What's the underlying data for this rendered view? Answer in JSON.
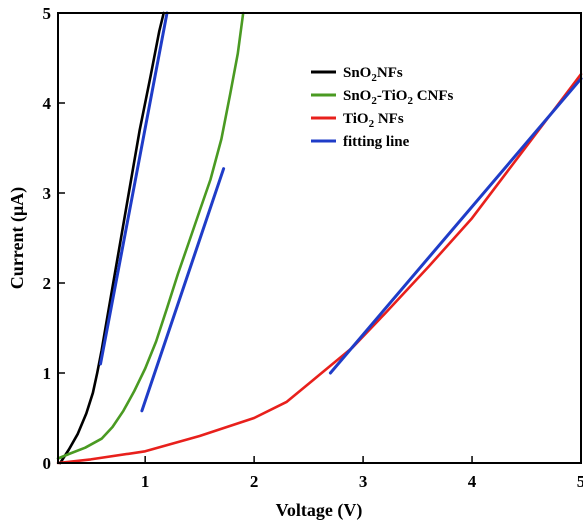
{
  "chart_data": {
    "type": "line",
    "xlabel": "Voltage (V)",
    "ylabel_parts": [
      "Current (",
      "μ",
      "A)"
    ],
    "xlim": [
      0.2,
      5.0
    ],
    "ylim": [
      0,
      5
    ],
    "x_ticks": [
      1,
      2,
      3,
      4,
      5
    ],
    "y_ticks": [
      0,
      1,
      2,
      3,
      4,
      5
    ],
    "legend_position": "top-right",
    "legend": [
      {
        "series": "sno2",
        "parts": [
          {
            "t": "SnO"
          },
          {
            "t": "2",
            "sub": true
          },
          {
            "t": "NFs"
          }
        ]
      },
      {
        "series": "composite",
        "parts": [
          {
            "t": "SnO"
          },
          {
            "t": "2",
            "sub": true
          },
          {
            "t": "-TiO"
          },
          {
            "t": "2",
            "sub": true
          },
          {
            "t": " CNFs"
          }
        ]
      },
      {
        "series": "tio2",
        "parts": [
          {
            "t": "TiO"
          },
          {
            "t": "2",
            "sub": true
          },
          {
            "t": " NFs"
          }
        ]
      },
      {
        "series": "fit",
        "parts": [
          {
            "t": "fitting line"
          }
        ]
      }
    ],
    "series": [
      {
        "id": "sno2",
        "color": "#000000",
        "points": [
          [
            0.22,
            0.0
          ],
          [
            0.3,
            0.15
          ],
          [
            0.38,
            0.32
          ],
          [
            0.46,
            0.55
          ],
          [
            0.52,
            0.78
          ],
          [
            0.56,
            1.0
          ],
          [
            0.6,
            1.25
          ],
          [
            0.65,
            1.6
          ],
          [
            0.75,
            2.3
          ],
          [
            0.85,
            3.0
          ],
          [
            0.95,
            3.7
          ],
          [
            1.05,
            4.3
          ],
          [
            1.13,
            4.8
          ],
          [
            1.17,
            5.0
          ]
        ]
      },
      {
        "id": "composite",
        "color": "#4a9a22",
        "points": [
          [
            0.2,
            0.05
          ],
          [
            0.3,
            0.1
          ],
          [
            0.45,
            0.17
          ],
          [
            0.6,
            0.27
          ],
          [
            0.7,
            0.4
          ],
          [
            0.8,
            0.58
          ],
          [
            0.9,
            0.8
          ],
          [
            1.0,
            1.05
          ],
          [
            1.1,
            1.35
          ],
          [
            1.2,
            1.72
          ],
          [
            1.3,
            2.1
          ],
          [
            1.4,
            2.45
          ],
          [
            1.5,
            2.8
          ],
          [
            1.6,
            3.15
          ],
          [
            1.7,
            3.6
          ],
          [
            1.78,
            4.1
          ],
          [
            1.85,
            4.55
          ],
          [
            1.9,
            5.0
          ]
        ]
      },
      {
        "id": "tio2",
        "color": "#e8201c",
        "points": [
          [
            0.2,
            0.0
          ],
          [
            0.5,
            0.04
          ],
          [
            1.0,
            0.13
          ],
          [
            1.5,
            0.3
          ],
          [
            2.0,
            0.5
          ],
          [
            2.3,
            0.68
          ],
          [
            2.6,
            0.98
          ],
          [
            2.9,
            1.28
          ],
          [
            3.2,
            1.66
          ],
          [
            3.6,
            2.18
          ],
          [
            4.0,
            2.72
          ],
          [
            4.5,
            3.52
          ],
          [
            5.0,
            4.32
          ]
        ]
      },
      {
        "id": "fit-sno2",
        "color": "#1f3cc8",
        "points": [
          [
            0.59,
            1.1
          ],
          [
            1.2,
            5.0
          ]
        ]
      },
      {
        "id": "fit-composite",
        "color": "#1f3cc8",
        "points": [
          [
            0.97,
            0.58
          ],
          [
            1.72,
            3.27
          ]
        ]
      },
      {
        "id": "fit-tio2",
        "color": "#1f3cc8",
        "points": [
          [
            2.7,
            1.0
          ],
          [
            5.0,
            4.27
          ]
        ]
      }
    ],
    "legend_colors": {
      "sno2": "#000000",
      "composite": "#4a9a22",
      "tio2": "#e8201c",
      "fit": "#1f3cc8"
    }
  }
}
